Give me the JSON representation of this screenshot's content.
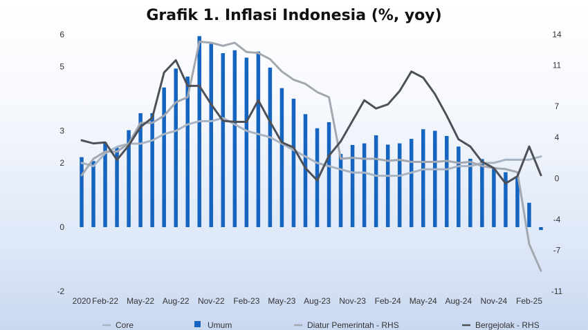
{
  "chart_data": {
    "type": "bar",
    "title": "Grafik 1. Inflasi Indonesia (%, yoy)",
    "left_axis": {
      "ylim": [
        -2,
        6
      ],
      "ticks": [
        -2,
        0,
        2,
        3,
        5,
        6
      ]
    },
    "right_axis": {
      "ylim": [
        -11,
        14
      ],
      "ticks": [
        -11,
        -7,
        -4,
        0,
        4,
        7,
        11,
        14
      ]
    },
    "x_ticks": [
      "2020",
      "Feb-22",
      "May-22",
      "Aug-22",
      "Nov-22",
      "Feb-23",
      "May-23",
      "Aug-23",
      "Nov-23",
      "Feb-24",
      "May-24",
      "Aug-24",
      "Nov-24",
      "Feb-25"
    ],
    "x_tick_index": [
      0,
      2,
      5,
      8,
      11,
      14,
      17,
      20,
      23,
      26,
      29,
      32,
      35,
      38
    ],
    "legend_position": "bottom",
    "grid": false,
    "series": [
      {
        "name": "Umum",
        "kind": "bar",
        "axis": "left",
        "color": "#1565c0",
        "values": [
          2.18,
          2.06,
          2.64,
          2.47,
          3.02,
          3.55,
          3.55,
          4.35,
          4.94,
          4.69,
          5.95,
          5.71,
          5.42,
          5.51,
          5.28,
          5.47,
          4.97,
          4.33,
          4.0,
          3.52,
          3.08,
          3.27,
          2.28,
          2.56,
          2.61,
          2.86,
          2.57,
          2.61,
          2.75,
          3.05,
          3.0,
          2.84,
          2.51,
          2.13,
          2.12,
          1.84,
          1.71,
          1.57,
          0.76,
          -0.09
        ]
      },
      {
        "name": "Core",
        "kind": "line",
        "axis": "left",
        "color": "#a9b4c2",
        "values": [
          2.0,
          1.9,
          2.3,
          2.5,
          2.6,
          2.6,
          2.7,
          2.9,
          3.0,
          3.2,
          3.3,
          3.3,
          3.4,
          3.2,
          3.0,
          2.9,
          2.8,
          2.6,
          2.4,
          2.2,
          2.0,
          1.9,
          1.8,
          1.7,
          1.7,
          1.6,
          1.6,
          1.6,
          1.7,
          1.8,
          1.8,
          1.8,
          1.9,
          1.9,
          2.0,
          2.0,
          2.1,
          2.1,
          2.1,
          2.2
        ]
      },
      {
        "name": "Diatur Pemerintah - RHS",
        "kind": "line",
        "axis": "right",
        "color": "#a3a8b0",
        "values": [
          0.3,
          1.9,
          2.6,
          2.6,
          3.4,
          5.4,
          5.4,
          6.1,
          7.4,
          7.9,
          13.3,
          13.2,
          12.9,
          13.2,
          12.3,
          12.2,
          11.6,
          10.4,
          9.6,
          9.2,
          8.4,
          7.9,
          1.9,
          2.0,
          1.9,
          1.9,
          1.7,
          1.8,
          1.6,
          1.6,
          1.6,
          1.7,
          1.5,
          1.6,
          1.2,
          1.0,
          0.9,
          0.6,
          -6.4,
          -9.0
        ]
      },
      {
        "name": "Bergejolak - RHS",
        "kind": "line",
        "axis": "right",
        "color": "#4d5157",
        "values": [
          3.7,
          3.4,
          3.5,
          1.8,
          3.2,
          5.0,
          5.9,
          10.3,
          11.5,
          9.0,
          9.0,
          7.2,
          5.6,
          5.5,
          5.5,
          7.6,
          5.5,
          3.5,
          3.0,
          1.0,
          -0.2,
          2.2,
          3.6,
          5.6,
          7.6,
          6.8,
          7.2,
          8.5,
          10.4,
          9.8,
          8.2,
          6.1,
          3.8,
          3.1,
          1.6,
          1.0,
          -0.5,
          0.2,
          3.1,
          0.3
        ]
      }
    ]
  }
}
